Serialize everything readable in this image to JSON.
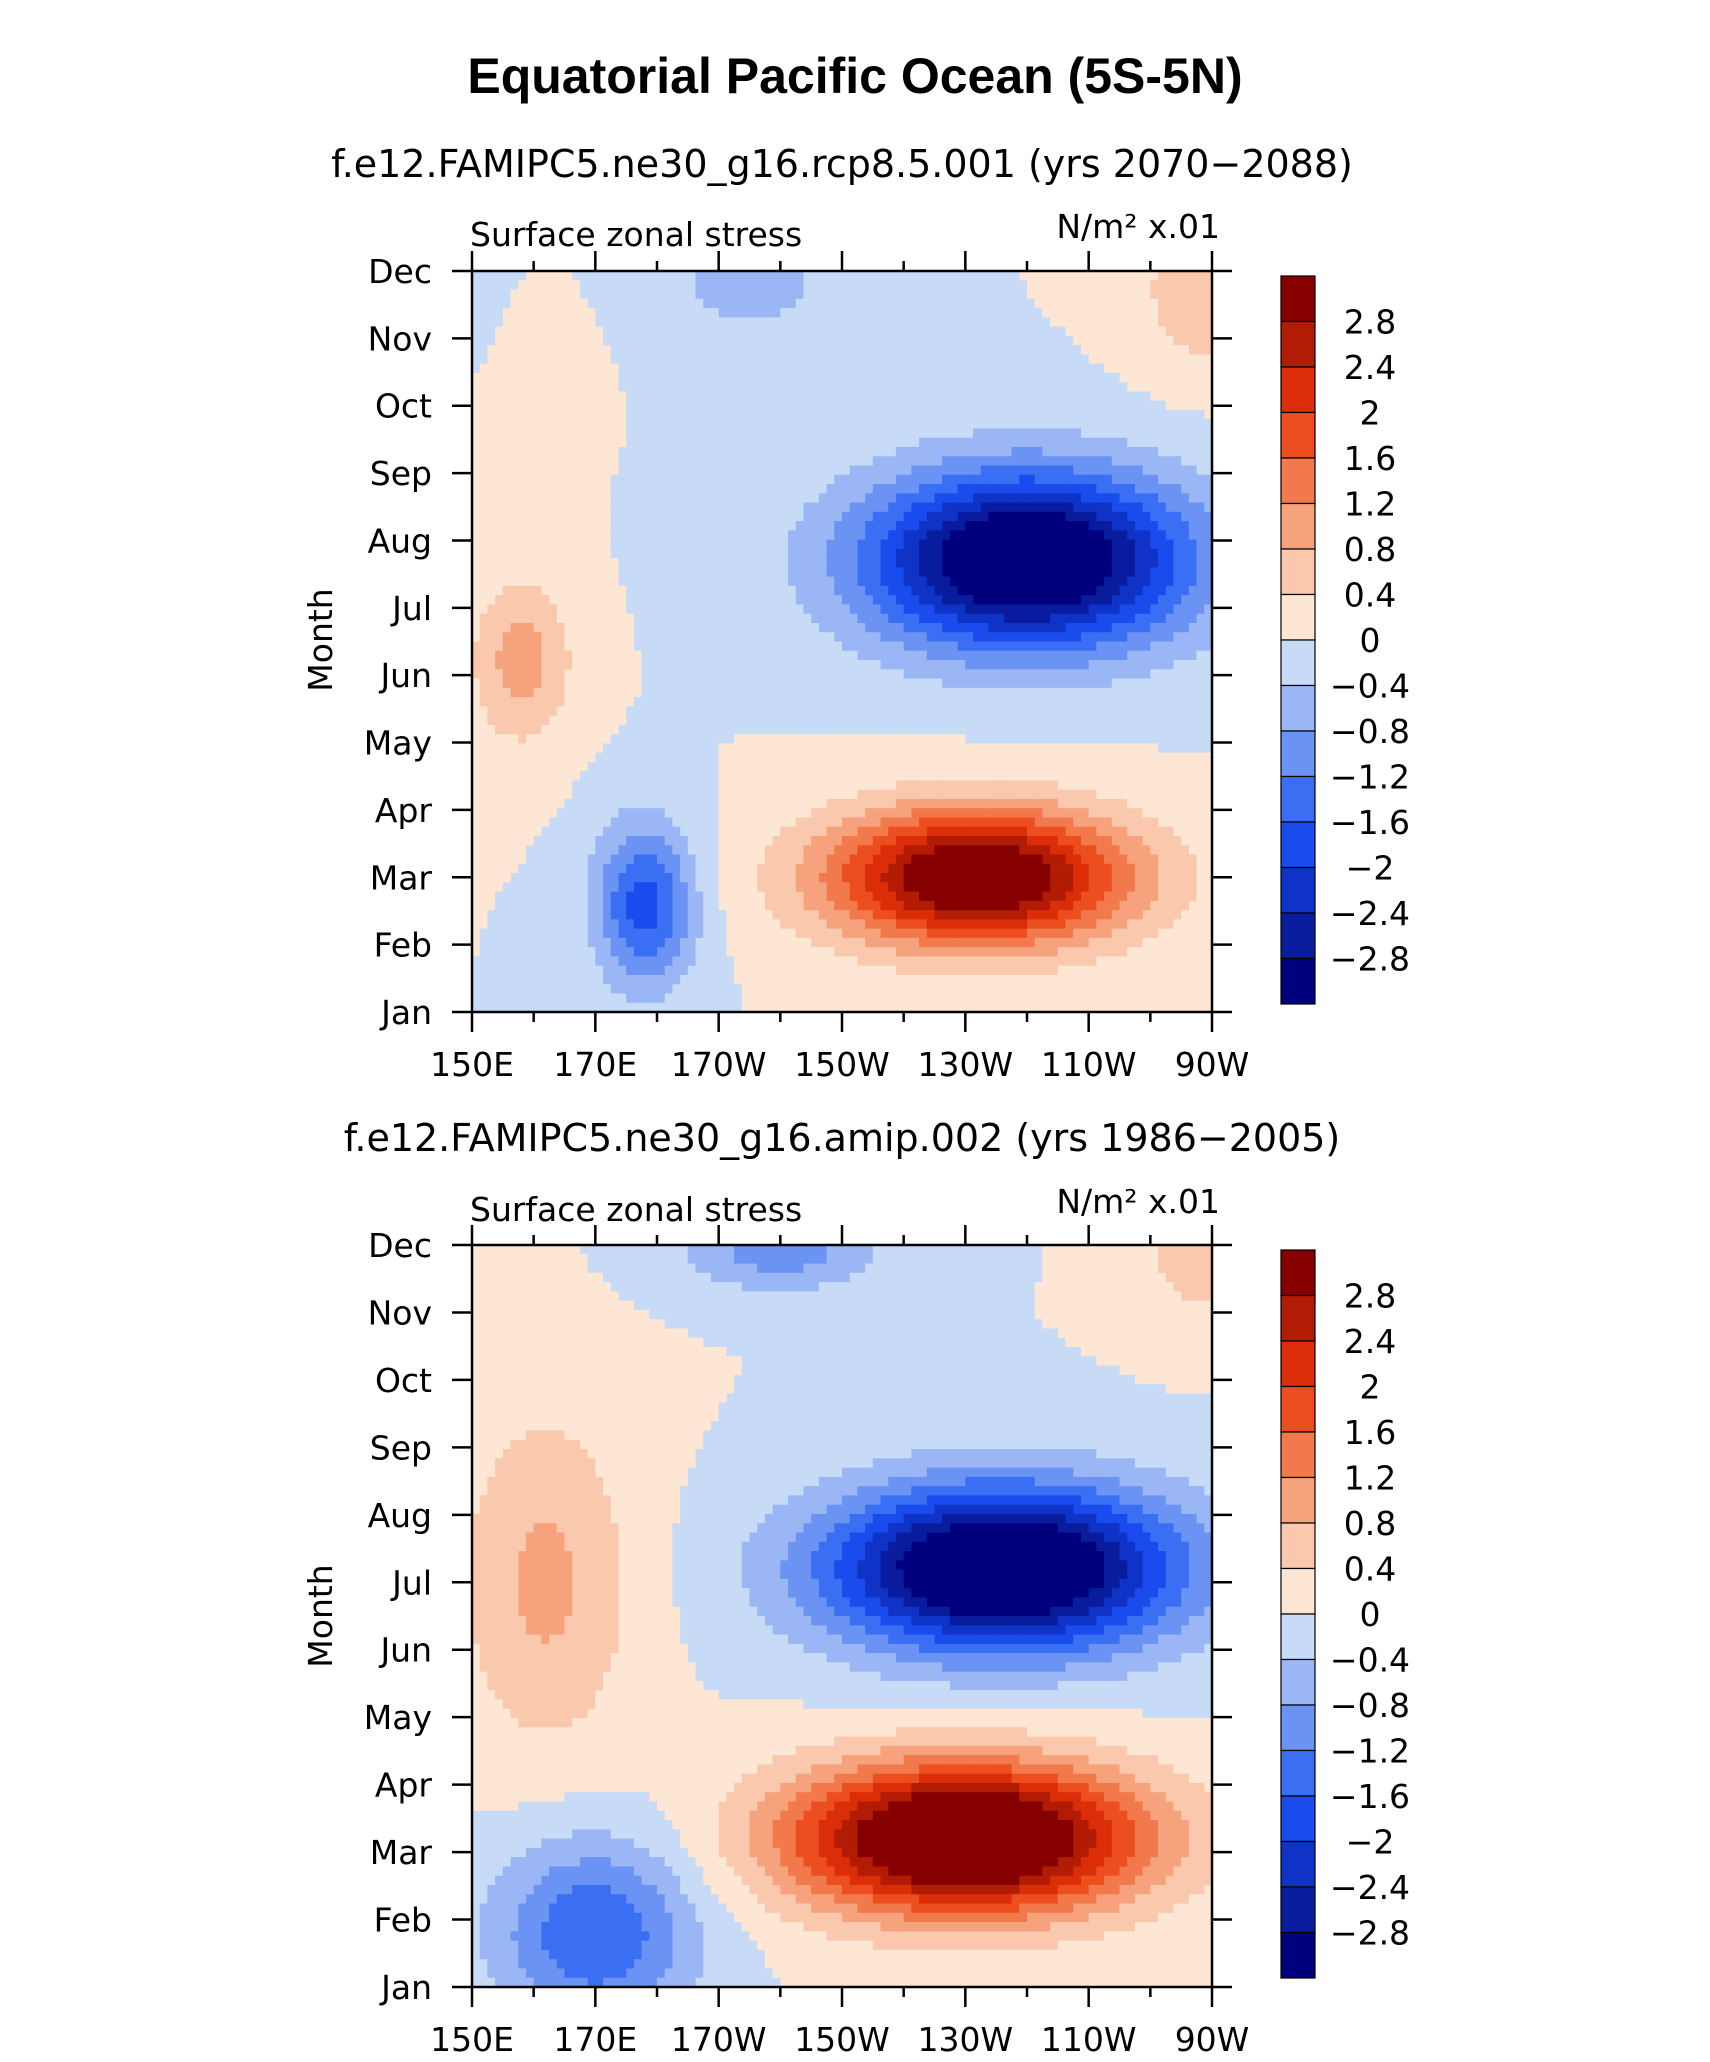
{
  "figure": {
    "title": "Equatorial Pacific Ocean (5S-5N)"
  },
  "palette": {
    "levels": [
      -2.8,
      -2.4,
      -2,
      -1.6,
      -1.2,
      -0.8,
      -0.4,
      0,
      0.4,
      0.8,
      1.2,
      1.6,
      2,
      2.4,
      2.8
    ],
    "level_labels": [
      "−2.8",
      "−2.4",
      "−2",
      "−1.6",
      "−1.2",
      "−0.8",
      "−0.4",
      "0",
      "0.4",
      "0.8",
      "1.2",
      "1.6",
      "2",
      "2.4",
      "2.8"
    ],
    "colors": [
      "#00007f",
      "#0a1c9e",
      "#0e33c6",
      "#1a4bec",
      "#3b6ff3",
      "#6a93f3",
      "#9ab6f4",
      "#c7dbf7",
      "#fde6d4",
      "#f9c8ad",
      "#f6a37d",
      "#f2794b",
      "#ed4e1f",
      "#db2e08",
      "#b21b04",
      "#860000"
    ]
  },
  "chart_data": [
    {
      "type": "heatmap",
      "title": "f.e12.FAMIPC5.ne30_g16.rcp8.5.001 (yrs 2070−2088)",
      "left_string": "Surface zonal stress",
      "right_string": "N/m² x.01",
      "ylabel": "Month",
      "xlabel": "",
      "x": [
        150,
        170,
        190,
        210,
        230,
        250,
        270
      ],
      "x_tick_labels": [
        "150E",
        "170E",
        "170W",
        "150W",
        "130W",
        "110W",
        "90W"
      ],
      "y_tick_labels": [
        "Jan",
        "Feb",
        "Mar",
        "Apr",
        "May",
        "Jun",
        "Jul",
        "Aug",
        "Sep",
        "Oct",
        "Nov",
        "Dec"
      ],
      "xlim": [
        150,
        270
      ],
      "ylim": [
        1,
        12
      ],
      "colorbar_levels": [
        -2.8,
        -2.4,
        -2,
        -1.6,
        -1.2,
        -0.8,
        -0.4,
        0,
        0.4,
        0.8,
        1.2,
        1.6,
        2,
        2.4,
        2.8
      ],
      "features": [
        {
          "lon": 240,
          "month": 7.7,
          "sx": 26,
          "sy": 1.3,
          "amp": -3.8,
          "rot": 0.5
        },
        {
          "lon": 232,
          "month": 3.0,
          "sx": 24,
          "sy": 1.0,
          "amp": 3.6,
          "rot": 0.7
        },
        {
          "lon": 178,
          "month": 2.6,
          "sx": 8,
          "sy": 1.2,
          "amp": -1.8,
          "rot": 0
        },
        {
          "lon": 158,
          "month": 6.2,
          "sx": 8,
          "sy": 1.2,
          "amp": 1.0,
          "rot": 0
        },
        {
          "lon": 195,
          "month": 11.8,
          "sx": 14,
          "sy": 0.8,
          "amp": -0.6,
          "rot": 0
        },
        {
          "lon": 268,
          "month": 11.7,
          "sx": 10,
          "sy": 1.2,
          "amp": 0.7,
          "rot": 0
        },
        {
          "lon": 165,
          "month": 10.0,
          "sx": 4,
          "sy": 1.0,
          "amp": 0.4,
          "rot": 0
        }
      ]
    },
    {
      "type": "heatmap",
      "title": "f.e12.FAMIPC5.ne30_g16.amip.002 (yrs 1986−2005)",
      "left_string": "Surface zonal stress",
      "right_string": "N/m² x.01",
      "ylabel": "Month",
      "xlabel": "",
      "x": [
        150,
        170,
        190,
        210,
        230,
        250,
        270
      ],
      "x_tick_labels": [
        "150E",
        "170E",
        "170W",
        "150W",
        "130W",
        "110W",
        "90W"
      ],
      "y_tick_labels": [
        "Jan",
        "Feb",
        "Mar",
        "Apr",
        "May",
        "Jun",
        "Jul",
        "Aug",
        "Sep",
        "Oct",
        "Nov",
        "Dec"
      ],
      "xlim": [
        150,
        270
      ],
      "ylim": [
        1,
        12
      ],
      "colorbar_levels": [
        -2.8,
        -2.4,
        -2,
        -1.6,
        -1.2,
        -0.8,
        -0.4,
        0,
        0.4,
        0.8,
        1.2,
        1.6,
        2,
        2.4,
        2.8
      ],
      "features": [
        {
          "lon": 236,
          "month": 7.2,
          "sx": 28,
          "sy": 1.2,
          "amp": -4.0,
          "rot": 0.5
        },
        {
          "lon": 230,
          "month": 3.2,
          "sx": 28,
          "sy": 1.1,
          "amp": 4.2,
          "rot": 0.7
        },
        {
          "lon": 170,
          "month": 1.8,
          "sx": 16,
          "sy": 1.4,
          "amp": -1.6,
          "rot": 0
        },
        {
          "lon": 162,
          "month": 7.0,
          "sx": 14,
          "sy": 2.5,
          "amp": 0.9,
          "rot": 0
        },
        {
          "lon": 200,
          "month": 11.9,
          "sx": 16,
          "sy": 0.6,
          "amp": -1.0,
          "rot": 0
        },
        {
          "lon": 268,
          "month": 11.8,
          "sx": 10,
          "sy": 1.0,
          "amp": 0.6,
          "rot": 0
        }
      ]
    }
  ]
}
